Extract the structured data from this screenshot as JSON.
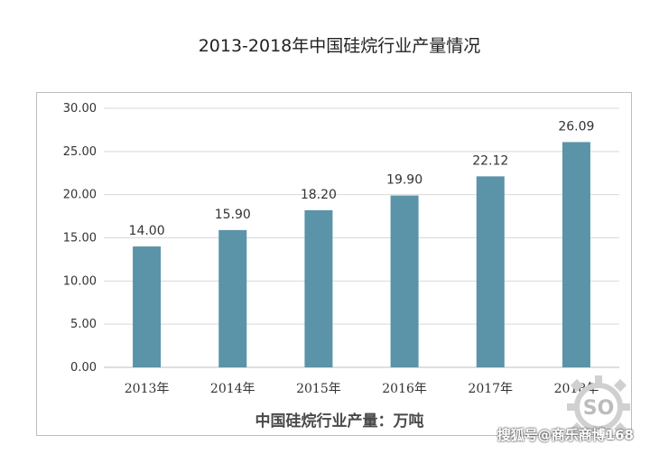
{
  "chart_data": {
    "type": "bar",
    "title": "2013-2018年中国硅烷行业产量情况",
    "xlabel": "中国硅烷行业产量：万吨",
    "ylabel": "",
    "categories": [
      "2013年",
      "2014年",
      "2015年",
      "2016年",
      "2017年",
      "2018年"
    ],
    "values": [
      14.0,
      15.9,
      18.2,
      19.9,
      22.12,
      26.09
    ],
    "data_labels": [
      "14.00",
      "15.90",
      "18.20",
      "19.90",
      "22.12",
      "26.09"
    ],
    "yticks": [
      "0.00",
      "5.00",
      "10.00",
      "15.00",
      "20.00",
      "25.00",
      "30.00"
    ],
    "ytick_values": [
      0,
      5,
      10,
      15,
      20,
      25,
      30
    ],
    "ylim": [
      0,
      30
    ],
    "grid": true,
    "legend": "none",
    "bar_color": "#5b93a8"
  },
  "watermark": {
    "text": "搜狐号@商乐商博168"
  }
}
